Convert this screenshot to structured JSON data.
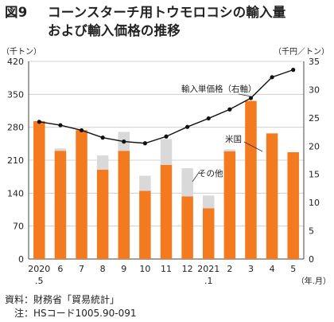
{
  "title": {
    "label": "図9",
    "line1": "コーンスターチ用トウモロコシの輸入量",
    "line2": "および輸入価格の推移"
  },
  "chart_data": {
    "type": "bar",
    "y_left_unit": "（千トン）",
    "y_right_unit": "（千円／トン）",
    "x_unit": "（年.月）",
    "ylim_left": [
      0,
      420
    ],
    "yticks_left": [
      0,
      70,
      140,
      210,
      280,
      350,
      420
    ],
    "ylim_right": [
      0,
      35
    ],
    "yticks_right": [
      0,
      5,
      10,
      15,
      20,
      25,
      30,
      35
    ],
    "categories": [
      {
        "top": "2020",
        "bottom": ".5"
      },
      {
        "top": "6",
        "bottom": ""
      },
      {
        "top": "7",
        "bottom": ""
      },
      {
        "top": "8",
        "bottom": ""
      },
      {
        "top": "9",
        "bottom": ""
      },
      {
        "top": "10",
        "bottom": ""
      },
      {
        "top": "11",
        "bottom": ""
      },
      {
        "top": "12",
        "bottom": ""
      },
      {
        "top": "2021",
        "bottom": ".1"
      },
      {
        "top": "2",
        "bottom": ""
      },
      {
        "top": "3",
        "bottom": ""
      },
      {
        "top": "4",
        "bottom": ""
      },
      {
        "top": "5",
        "bottom": ""
      }
    ],
    "series": [
      {
        "name": "米国",
        "kind": "bar",
        "color": "#f47a20",
        "values": [
          293,
          230,
          274,
          190,
          230,
          145,
          200,
          133,
          108,
          229,
          336,
          267,
          227
        ]
      },
      {
        "name": "その他",
        "kind": "bar",
        "color": "#d9d9d9",
        "values": [
          0,
          5,
          0,
          30,
          40,
          32,
          55,
          60,
          27,
          4,
          0,
          0,
          0
        ]
      },
      {
        "name": "輸入単価格（右軸）",
        "kind": "line",
        "color": "#111111",
        "values": [
          24.3,
          23.7,
          22.8,
          21.5,
          20.8,
          20.5,
          21.7,
          23.4,
          24.9,
          26.5,
          28.5,
          32.2,
          33.5
        ]
      }
    ],
    "annotations": [
      {
        "text": "輸入単価格（右軸）",
        "series": 2
      },
      {
        "text": "米国",
        "series": 0
      },
      {
        "text": "その他",
        "series": 1
      }
    ],
    "grid": true
  },
  "footer": {
    "source": "資料：財務省「貿易統計」",
    "note": "注：HSコード1005.90-091"
  }
}
